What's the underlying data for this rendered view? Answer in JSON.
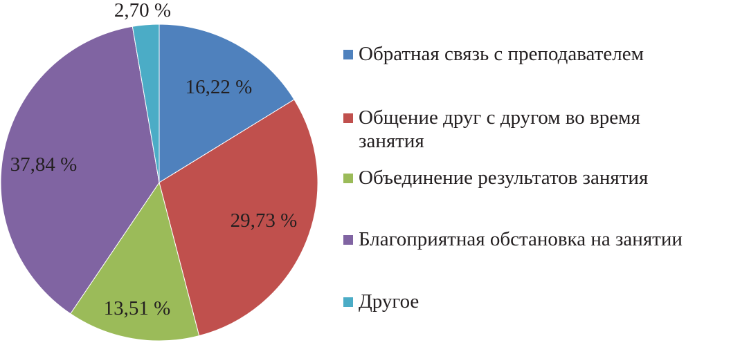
{
  "chart_data": {
    "type": "pie",
    "slices": [
      {
        "label": "Обратная связь с преподавателем",
        "value": 16.22,
        "value_text": "16,22 %",
        "color": "#4f81bd"
      },
      {
        "label": "Общение друг с другом во время занятия",
        "value": 29.73,
        "value_text": "29,73 %",
        "color": "#c0504d"
      },
      {
        "label": "Объединение результатов занятия",
        "value": 13.51,
        "value_text": "13,51 %",
        "color": "#9bbb59"
      },
      {
        "label": "Благоприятная обстановка на занятии",
        "value": 37.84,
        "value_text": "37,84 %",
        "color": "#8064a2"
      },
      {
        "label": "Другое",
        "value": 2.7,
        "value_text": "2,70 %",
        "color": "#4bacc6"
      }
    ],
    "start_angle": "12 o'clock",
    "direction": "clockwise",
    "legend_position": "right"
  }
}
